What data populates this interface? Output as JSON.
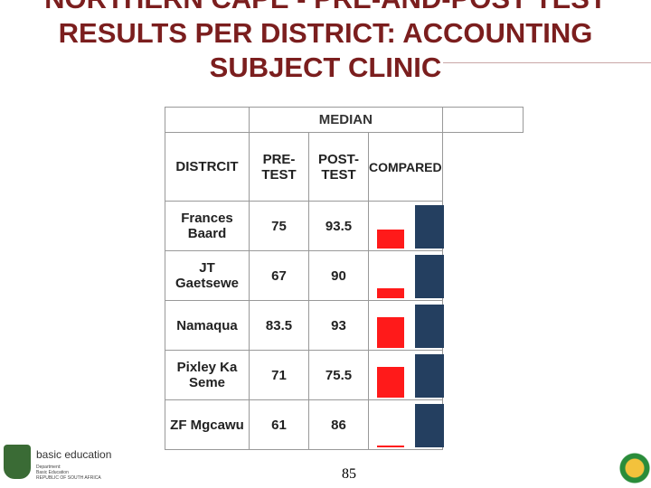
{
  "title": "NORTHERN CAPE - PRE-AND-POST TEST RESULTS PER DISTRICT: ACCOUNTING SUBJECT CLINIC",
  "table": {
    "group_header": "MEDIAN",
    "columns": [
      "DISTRCIT",
      "PRE-TEST",
      "POST-TEST",
      "COMPARED"
    ],
    "rows": [
      {
        "district": "Frances Baard",
        "pre": 75,
        "post": 93.5
      },
      {
        "district": "JT Gaetsewe",
        "pre": 67,
        "post": 90
      },
      {
        "district": "Namaqua",
        "pre": 83.5,
        "post": 93
      },
      {
        "district": "Pixley Ka Seme",
        "pre": 71,
        "post": 75.5
      },
      {
        "district": "ZF Mgcawu",
        "pre": 61,
        "post": 86
      }
    ],
    "colors": {
      "pre": "#ff1a1a",
      "post": "#243f60"
    }
  },
  "logo": {
    "name": "basic education",
    "lines": [
      "Department:",
      "Basic Education",
      "REPUBLIC OF SOUTH AFRICA"
    ]
  },
  "page_number": "85"
}
